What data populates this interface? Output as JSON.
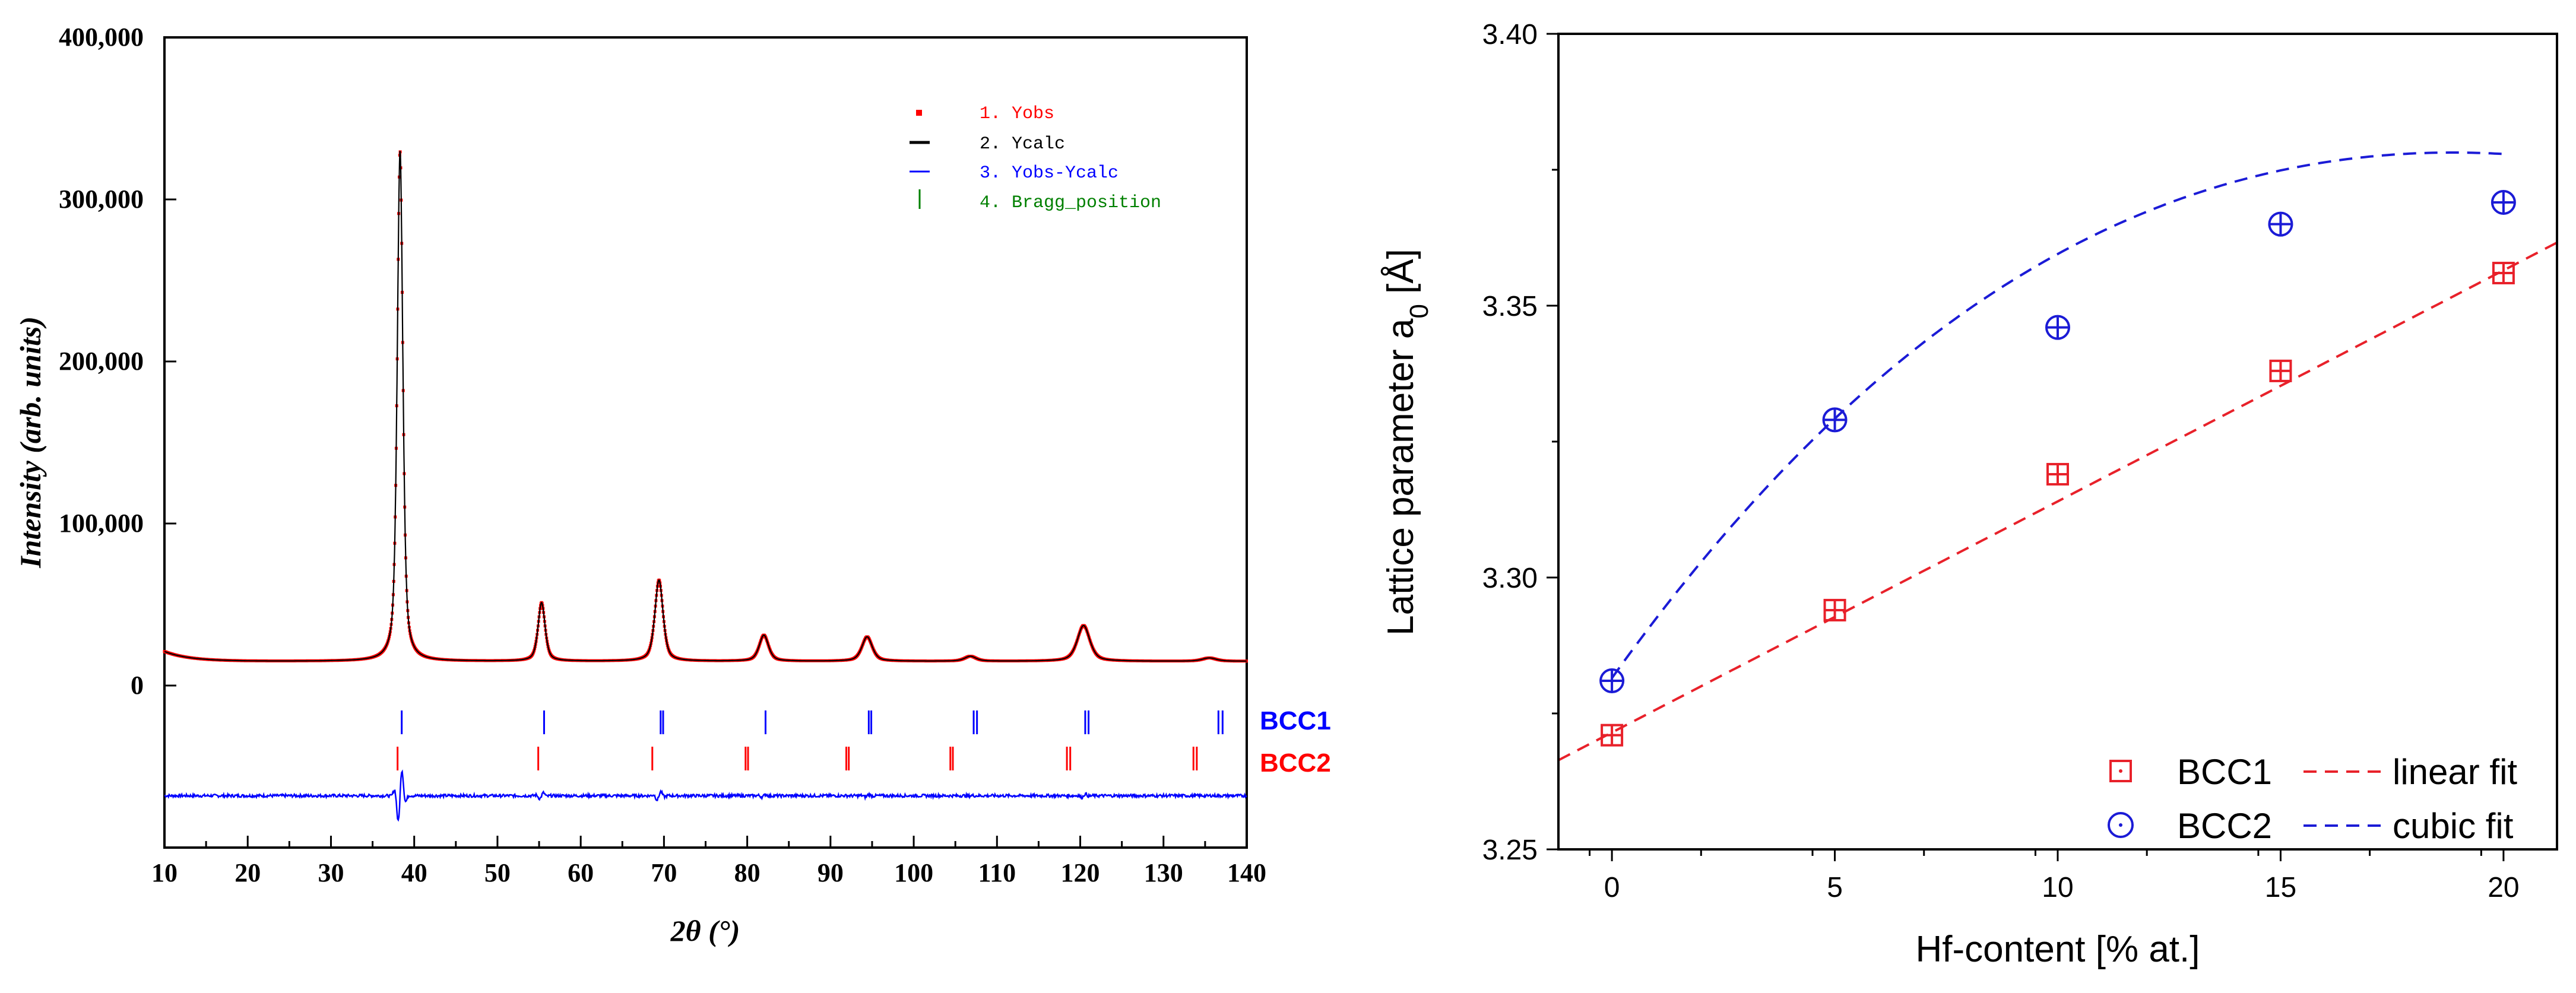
{
  "chart_data": [
    {
      "type": "line",
      "xlabel": "2θ (°)",
      "ylabel": "Intensity (arb. units)",
      "xlim": [
        10,
        140
      ],
      "ylim": [
        -100000,
        400000
      ],
      "x_ticks": [
        10,
        20,
        30,
        40,
        50,
        60,
        70,
        80,
        90,
        100,
        110,
        120,
        130,
        140
      ],
      "x_tick_labels": [
        "10",
        "20",
        "30",
        "40",
        "50",
        "60",
        "70",
        "80",
        "90",
        "100",
        "110",
        "120",
        "130",
        "140"
      ],
      "y_ticks": [
        0,
        100000,
        200000,
        300000,
        400000
      ],
      "y_tick_labels": [
        "0",
        "100,000",
        "200,000",
        "300,000",
        "400,000"
      ],
      "grid": false,
      "legend_position": "top-right",
      "background_level": 15000,
      "peaks": [
        {
          "x": 38.3,
          "y": 330000
        },
        {
          "x": 55.3,
          "y": 51000
        },
        {
          "x": 69.4,
          "y": 65000
        },
        {
          "x": 82.0,
          "y": 31000
        },
        {
          "x": 94.4,
          "y": 30000
        },
        {
          "x": 106.8,
          "y": 18000
        },
        {
          "x": 120.4,
          "y": 37000
        },
        {
          "x": 135.5,
          "y": 17000
        }
      ],
      "series": [
        {
          "name": "1. Yobs",
          "color": "#ff0000",
          "style": "points"
        },
        {
          "name": "2. Ycalc",
          "color": "#000000",
          "style": "line"
        },
        {
          "name": "3. Yobs-Ycalc",
          "color": "#0000ff",
          "style": "line",
          "offset": -68000
        },
        {
          "name": "4. Bragg_position",
          "color": "#008000",
          "style": "ticks"
        }
      ],
      "phases": [
        {
          "name": "BCC1",
          "color": "#0000ff",
          "positions": [
            38.5,
            55.6,
            69.6,
            69.9,
            82.2,
            94.6,
            94.9,
            107.2,
            107.6,
            120.6,
            121.0,
            136.6,
            137.1
          ]
        },
        {
          "name": "BCC2",
          "color": "#ff0000",
          "positions": [
            38.0,
            54.9,
            68.6,
            79.8,
            80.1,
            91.9,
            92.2,
            104.4,
            104.7,
            118.4,
            118.8,
            133.6,
            134.0
          ]
        }
      ]
    },
    {
      "type": "scatter",
      "xlabel": "Hf-content [% at.]",
      "ylabel_main": "Lattice parameter a",
      "ylabel_sub": "0",
      "ylabel_tail": " [Å]",
      "xlim": [
        -1.2,
        21.2
      ],
      "ylim": [
        3.25,
        3.4
      ],
      "x_ticks": [
        0,
        5,
        10,
        15,
        20
      ],
      "x_tick_labels": [
        "0",
        "5",
        "10",
        "15",
        "20"
      ],
      "y_ticks": [
        3.25,
        3.3,
        3.35,
        3.4
      ],
      "y_tick_labels": [
        "3.25",
        "3.30",
        "3.35",
        "3.40"
      ],
      "grid": false,
      "legend_position": "bottom-right",
      "series": [
        {
          "name": "BCC1",
          "color": "#e8212a",
          "marker": "square",
          "x": [
            0,
            5,
            10,
            15,
            20
          ],
          "y": [
            3.271,
            3.294,
            3.319,
            3.338,
            3.356
          ]
        },
        {
          "name": "BCC2",
          "color": "#1b1bd6",
          "marker": "circle",
          "x": [
            0,
            5,
            10,
            15,
            20
          ],
          "y": [
            3.281,
            3.329,
            3.346,
            3.365,
            3.369
          ]
        }
      ],
      "fits": [
        {
          "name": "linear fit",
          "color": "#e8212a",
          "kind": "linear",
          "from": -1.2,
          "to": 21.2,
          "intercept": 3.2715,
          "slope": 0.00425
        },
        {
          "name": "cubic fit",
          "color": "#1b1bd6",
          "kind": "cubic",
          "from": 0,
          "to": 20,
          "coeffs": [
            3.2815,
            0.01146,
            -0.0004,
            3.4e-06
          ]
        }
      ]
    }
  ]
}
